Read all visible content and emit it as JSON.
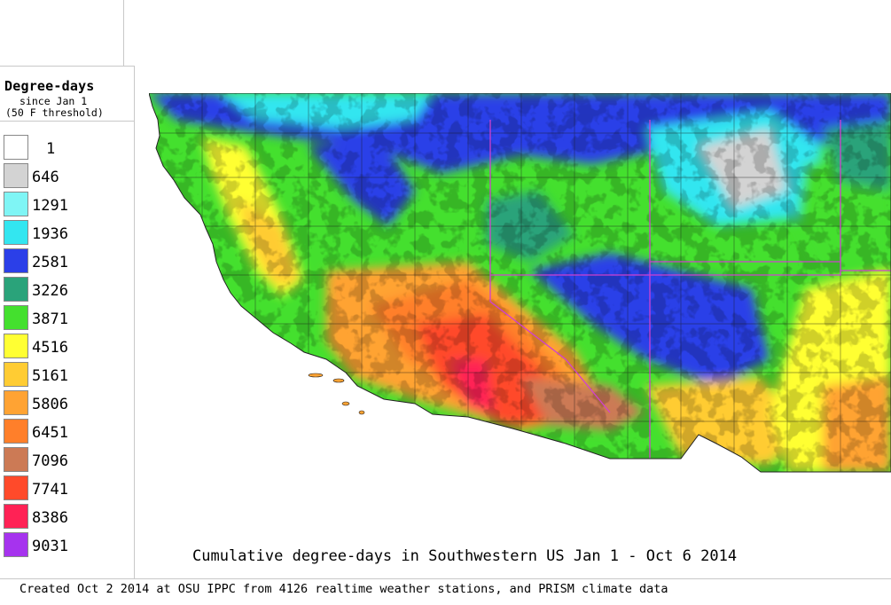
{
  "legend": {
    "title": "Degree-days",
    "subtitle1": "since Jan 1",
    "subtitle2": "(50 F threshold)",
    "items": [
      {
        "label": "1",
        "color": "#ffffff"
      },
      {
        "label": "646",
        "color": "#d3d3d3"
      },
      {
        "label": "1291",
        "color": "#7ff5f5"
      },
      {
        "label": "1936",
        "color": "#33e6f0"
      },
      {
        "label": "2581",
        "color": "#2b3fe8"
      },
      {
        "label": "3226",
        "color": "#2aa37a"
      },
      {
        "label": "3871",
        "color": "#44e02e"
      },
      {
        "label": "4516",
        "color": "#ffff33"
      },
      {
        "label": "5161",
        "color": "#ffcc33"
      },
      {
        "label": "5806",
        "color": "#ffa333"
      },
      {
        "label": "6451",
        "color": "#ff7f2a"
      },
      {
        "label": "7096",
        "color": "#cc7a55"
      },
      {
        "label": "7741",
        "color": "#ff4a2a"
      },
      {
        "label": "8386",
        "color": "#ff2255"
      },
      {
        "label": "9031",
        "color": "#a633ee"
      }
    ]
  },
  "map": {
    "title": "Cumulative degree-days in Southwestern US Jan 1 - Oct 6 2014",
    "region": "Southwestern US"
  },
  "footer": {
    "credit": "Created Oct 2 2014 at OSU IPPC from 4126 realtime weather stations, and PRISM climate data"
  }
}
